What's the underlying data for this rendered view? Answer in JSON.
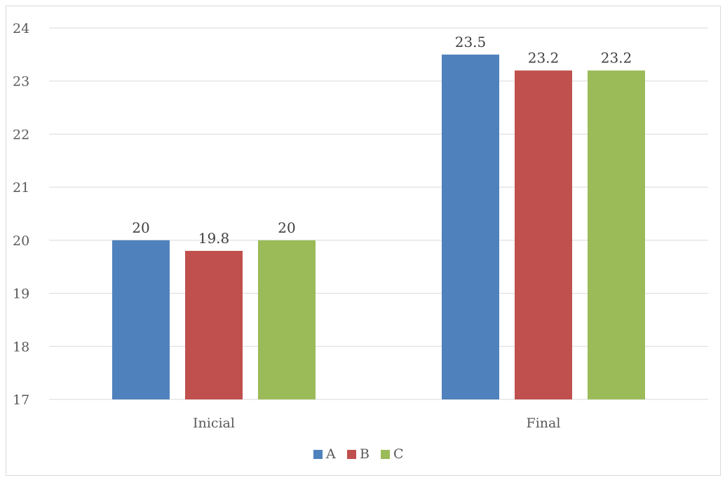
{
  "chart_data": {
    "type": "bar",
    "categories": [
      "Inicial",
      "Final"
    ],
    "series": [
      {
        "name": "A",
        "values": [
          20,
          23.5
        ],
        "color": "#4F81BD"
      },
      {
        "name": "B",
        "values": [
          19.8,
          23.2
        ],
        "color": "#C0504D"
      },
      {
        "name": "C",
        "values": [
          20,
          23.2
        ],
        "color": "#9BBB59"
      }
    ],
    "data_labels": [
      [
        "20",
        "23.5"
      ],
      [
        "19.8",
        "23.2"
      ],
      [
        "20",
        "23.2"
      ]
    ],
    "title": "",
    "xlabel": "",
    "ylabel": "",
    "ylim": [
      17,
      24
    ],
    "yticks": [
      17,
      18,
      19,
      20,
      21,
      22,
      23,
      24
    ],
    "grid": true,
    "legend_position": "bottom"
  }
}
